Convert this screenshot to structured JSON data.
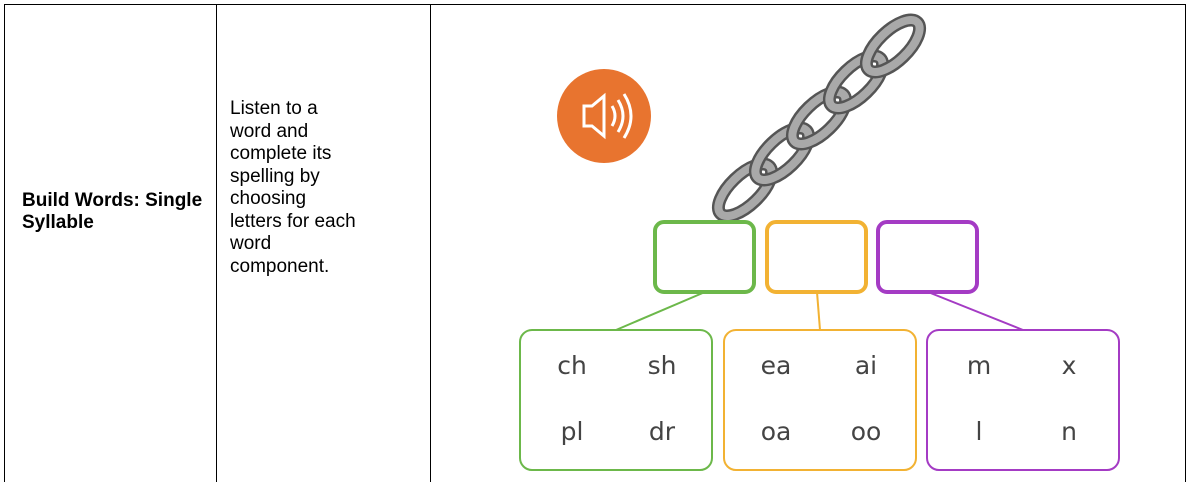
{
  "table": {
    "rows": [
      {
        "activity": "Build Words: Single Syllable",
        "description_lines": [
          "Listen to a",
          "word and",
          "complete its",
          "spelling by",
          "choosing",
          "letters for each",
          "word",
          "component."
        ]
      }
    ]
  },
  "illustration": {
    "groups": [
      {
        "color": "#6cb84a",
        "options": [
          "ch",
          "sh",
          "pl",
          "dr"
        ]
      },
      {
        "color": "#f2b233",
        "options": [
          "ea",
          "ai",
          "oa",
          "oo"
        ]
      },
      {
        "color": "#a43bc4",
        "options": [
          "m",
          "x",
          "l",
          "n"
        ]
      }
    ]
  }
}
